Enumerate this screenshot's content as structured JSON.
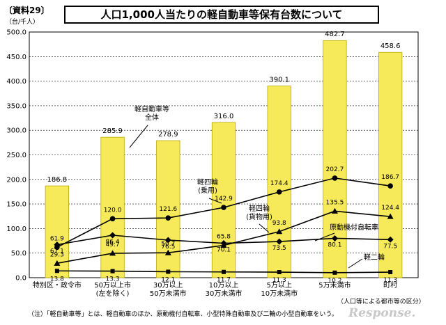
{
  "document_label": "〔資料29〕",
  "unit_label": "（台/千人）",
  "footnote": "（注）「軽自動車等」とは、軽自動車のほか、原動機付自転車、小型特殊自動車及び二輪の小型自動車をいう。",
  "axis_note": "（人口等による都市等の区分）",
  "watermark": "Response.",
  "chart_data": {
    "type": "bar",
    "title": "人口1,000人当たりの軽自動車等保有台数について",
    "categories": [
      "特別区・政令市",
      "50万以上市\n(左を除く)",
      "30万以上\n50万未満市",
      "10万以上\n30万未満市",
      "5万以上\n10万未満市",
      "5万未満市",
      "町村"
    ],
    "ylim": [
      0,
      500
    ],
    "yticks": [
      0.0,
      50.0,
      100.0,
      150.0,
      200.0,
      250.0,
      300.0,
      350.0,
      400.0,
      450.0,
      500.0
    ],
    "bar_series": {
      "name": "軽自動車等\n全体",
      "values": [
        186.8,
        285.9,
        278.9,
        316.0,
        390.1,
        482.7,
        458.6
      ]
    },
    "line_series": [
      {
        "name": "軽四輪\n(乗用)",
        "marker": "circle",
        "values": [
          61.9,
          120.0,
          121.6,
          142.9,
          174.4,
          202.7,
          186.7
        ]
      },
      {
        "name": "軽四輪\n(貨物用)",
        "marker": "triangle",
        "values": [
          29.3,
          49.7,
          50.7,
          65.8,
          93.8,
          135.5,
          124.4
        ]
      },
      {
        "name": "原動機付自転車",
        "marker": "diamond",
        "values": [
          67.1,
          86.4,
          76.5,
          70.1,
          73.5,
          80.1,
          77.5
        ]
      },
      {
        "name": "軽二輪",
        "marker": "square",
        "values": [
          13.8,
          13.3,
          12.1,
          11.7,
          11.3,
          10.2,
          11.3
        ]
      }
    ],
    "bar_color": "#f7ea5a",
    "bar_border": "#b8a800",
    "grid": true
  }
}
